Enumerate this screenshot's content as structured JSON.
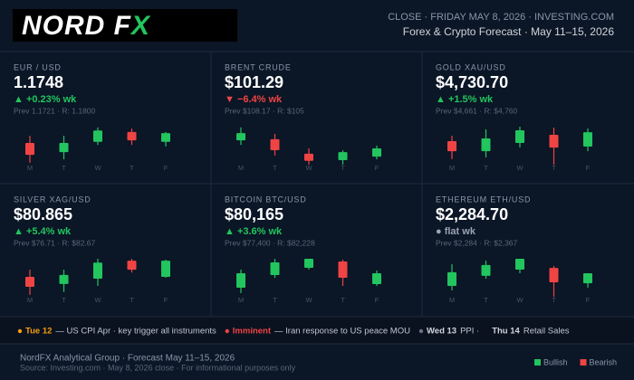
{
  "header": {
    "logo": "NORD F",
    "logo_accent": "X",
    "dateline": "CLOSE · FRIDAY MAY 8, 2026 · INVESTING.COM",
    "subtitle": "Forex & Crypto Forecast · May 11–15, 2026"
  },
  "days": [
    "M",
    "T",
    "W",
    "T",
    "F"
  ],
  "panels": [
    {
      "label": "EUR / USD",
      "price": "1.1748",
      "change": "▲ +0.23% wk",
      "change_color": "#22c55e",
      "prev": "Prev 1.1721 · R: 1.1800",
      "ylim": [
        1.17,
        1.18
      ],
      "candles": [
        {
          "open": 1.1757,
          "high": 1.1776,
          "low": 1.1705,
          "close": 1.1726
        },
        {
          "open": 1.1733,
          "high": 1.1776,
          "low": 1.1714,
          "close": 1.1757
        },
        {
          "open": 1.176,
          "high": 1.1798,
          "low": 1.1752,
          "close": 1.179
        },
        {
          "open": 1.1786,
          "high": 1.1795,
          "low": 1.1752,
          "close": 1.1764
        },
        {
          "open": 1.176,
          "high": 1.1786,
          "low": 1.1748,
          "close": 1.1783
        }
      ]
    },
    {
      "label": "BRENT CRUDE",
      "price": "$101.29",
      "change": "▼ −6.4% wk",
      "change_color": "#ef4444",
      "prev": "Prev $108.17 · R: $105",
      "ylim": [
        100,
        110
      ],
      "candles": [
        {
          "open": 106.4,
          "high": 109.8,
          "low": 105.2,
          "close": 108.3
        },
        {
          "open": 106.7,
          "high": 108.1,
          "low": 102.4,
          "close": 103.8
        },
        {
          "open": 102.9,
          "high": 104.3,
          "low": 100.0,
          "close": 101.0
        },
        {
          "open": 101.2,
          "high": 103.8,
          "low": 100.0,
          "close": 103.3
        },
        {
          "open": 102.1,
          "high": 105.0,
          "low": 101.4,
          "close": 104.3
        }
      ]
    },
    {
      "label": "GOLD XAU/USD",
      "price": "$4,730.70",
      "change": "▲ +1.5% wk",
      "change_color": "#22c55e",
      "prev": "Prev $4,661 · R: $4,760",
      "ylim": [
        4600,
        4800
      ],
      "candles": [
        {
          "open": 4724,
          "high": 4752,
          "low": 4629,
          "close": 4671
        },
        {
          "open": 4671,
          "high": 4786,
          "low": 4638,
          "close": 4738
        },
        {
          "open": 4714,
          "high": 4800,
          "low": 4690,
          "close": 4781
        },
        {
          "open": 4757,
          "high": 4795,
          "low": 4600,
          "close": 4690
        },
        {
          "open": 4695,
          "high": 4790,
          "low": 4671,
          "close": 4771
        }
      ]
    },
    {
      "label": "SILVER XAG/USD",
      "price": "$80.865",
      "change": "▲ +5.4% wk",
      "change_color": "#22c55e",
      "prev": "Prev $76.71 · R: $82.67",
      "ylim": [
        76,
        84
      ],
      "candles": [
        {
          "open": 80.2,
          "high": 81.7,
          "low": 76.4,
          "close": 78.1
        },
        {
          "open": 78.7,
          "high": 81.7,
          "low": 77.0,
          "close": 80.6
        },
        {
          "open": 79.8,
          "high": 84.0,
          "low": 78.3,
          "close": 83.2
        },
        {
          "open": 83.6,
          "high": 84.0,
          "low": 81.1,
          "close": 81.7
        },
        {
          "open": 80.2,
          "high": 83.8,
          "low": 80.0,
          "close": 83.6
        }
      ]
    },
    {
      "label": "BITCOIN BTC/USD",
      "price": "$80,165",
      "change": "▲ +3.6% wk",
      "change_color": "#22c55e",
      "prev": "Prev $77,400 · R: $82,228",
      "ylim": [
        76000,
        84000
      ],
      "candles": [
        {
          "open": 77905,
          "high": 81714,
          "low": 76762,
          "close": 80952
        },
        {
          "open": 80571,
          "high": 84000,
          "low": 80000,
          "close": 83238
        },
        {
          "open": 82095,
          "high": 84000,
          "low": 81714,
          "close": 84000
        },
        {
          "open": 83429,
          "high": 83810,
          "low": 78286,
          "close": 80000
        },
        {
          "open": 78667,
          "high": 81524,
          "low": 78286,
          "close": 80952
        }
      ]
    },
    {
      "label": "ETHEREUM ETH/USD",
      "price": "$2,284.70",
      "change": "● flat wk",
      "change_color": "#9ca3af",
      "prev": "Prev $2,284 · R: $2,367",
      "ylim": [
        2200,
        2400
      ],
      "candles": [
        {
          "open": 2257,
          "high": 2371,
          "low": 2233,
          "close": 2329
        },
        {
          "open": 2310,
          "high": 2390,
          "low": 2295,
          "close": 2367
        },
        {
          "open": 2343,
          "high": 2400,
          "low": 2324,
          "close": 2400
        },
        {
          "open": 2352,
          "high": 2362,
          "low": 2200,
          "close": 2276
        },
        {
          "open": 2271,
          "high": 2324,
          "low": 2248,
          "close": 2324
        }
      ]
    }
  ],
  "alerts": [
    {
      "tag": "Tue 12",
      "text": "— US CPI Apr · key trigger all instruments",
      "color": "#f59e0b"
    },
    {
      "tag": "Imminent",
      "text": "— Iran response to US peace MOU",
      "color": "#ef4444"
    },
    {
      "tag": "Wed 13",
      "text": "PPI ·",
      "color": "#6b7280"
    },
    {
      "tag": "Thu 14",
      "text": "Retail Sales"
    }
  ],
  "footer": {
    "line1": "NordFX Analytical Group · Forecast May 11–15, 2026",
    "line2": "Source: Investing.com · May 8, 2026 close · For informational purposes only"
  },
  "legend": [
    {
      "name": "Bullish",
      "color": "#22c55e"
    },
    {
      "name": "Bearish",
      "color": "#ef4444"
    }
  ]
}
